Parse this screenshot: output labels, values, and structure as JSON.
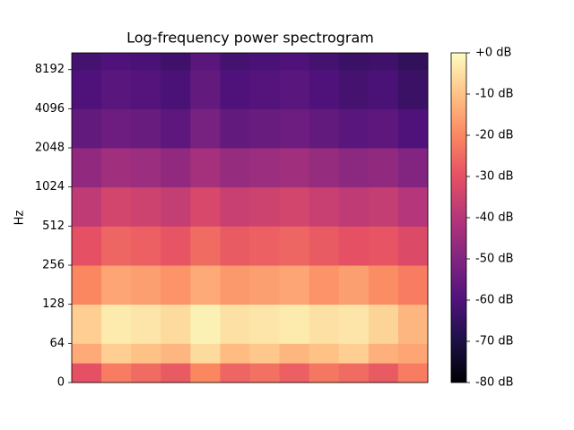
{
  "chart_data": {
    "type": "heatmap",
    "title": "Log-frequency power spectrogram",
    "ylabel": "Hz",
    "yscale": "symlog",
    "linthresh": 64,
    "ylim": [
      0,
      11025
    ],
    "yticks": [
      0,
      64,
      128,
      256,
      512,
      1024,
      2048,
      4096,
      8192
    ],
    "y_edges": [
      0,
      32,
      64,
      128,
      256,
      512,
      1024,
      2048,
      4096,
      8192,
      11025
    ],
    "z": [
      [
        -30,
        -22,
        -25,
        -28,
        -20,
        -26,
        -24,
        -27,
        -23,
        -25,
        -28,
        -22
      ],
      [
        -14,
        -8,
        -10,
        -12,
        -6,
        -11,
        -9,
        -12,
        -10,
        -8,
        -13,
        -15
      ],
      [
        -8,
        -3,
        -4,
        -6,
        -2,
        -5,
        -4,
        -3,
        -5,
        -4,
        -7,
        -12
      ],
      [
        -20,
        -15,
        -16,
        -18,
        -14,
        -17,
        -16,
        -15,
        -18,
        -16,
        -19,
        -22
      ],
      [
        -30,
        -26,
        -27,
        -29,
        -25,
        -28,
        -27,
        -26,
        -28,
        -30,
        -29,
        -32
      ],
      [
        -38,
        -34,
        -35,
        -37,
        -33,
        -36,
        -35,
        -34,
        -36,
        -38,
        -37,
        -40
      ],
      [
        -47,
        -44,
        -45,
        -47,
        -43,
        -46,
        -45,
        -44,
        -46,
        -48,
        -47,
        -50
      ],
      [
        -56,
        -54,
        -55,
        -57,
        -52,
        -56,
        -55,
        -54,
        -56,
        -58,
        -57,
        -60
      ],
      [
        -60,
        -58,
        -59,
        -61,
        -56,
        -60,
        -59,
        -58,
        -60,
        -62,
        -61,
        -64
      ],
      [
        -62,
        -60,
        -61,
        -63,
        -58,
        -62,
        -61,
        -60,
        -62,
        -64,
        -63,
        -66
      ]
    ],
    "colormap": "magma",
    "clim": [
      -80,
      0
    ],
    "cticks": [
      {
        "value": 0,
        "label": "+0 dB"
      },
      {
        "value": -10,
        "label": "-10 dB"
      },
      {
        "value": -20,
        "label": "-20 dB"
      },
      {
        "value": -30,
        "label": "-30 dB"
      },
      {
        "value": -40,
        "label": "-40 dB"
      },
      {
        "value": -50,
        "label": "-50 dB"
      },
      {
        "value": -60,
        "label": "-60 dB"
      },
      {
        "value": -70,
        "label": "-70 dB"
      },
      {
        "value": -80,
        "label": "-80 dB"
      }
    ]
  }
}
